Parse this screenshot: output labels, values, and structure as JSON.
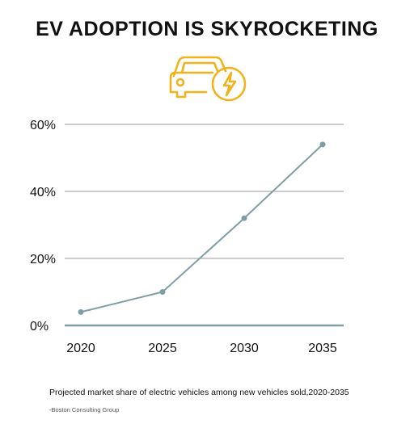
{
  "title": "EV ADOPTION IS SKYROCKETING",
  "icon": "ev-car-charging-icon",
  "accent_color": "#F2B21B",
  "line_color": "#7E9EA6",
  "caption": "Projected market share of electric vehicles among new vehicles sold,2020-2035",
  "source": "-Boston Consulting Group",
  "chart_data": {
    "type": "line",
    "x": [
      "2020",
      "2025",
      "2030",
      "2035"
    ],
    "series": [
      {
        "values": [
          4,
          10,
          32,
          54
        ]
      }
    ],
    "yticks": [
      "0%",
      "20%",
      "40%",
      "60%"
    ],
    "ylim": [
      0,
      60
    ],
    "grid": true,
    "legend": "none"
  }
}
